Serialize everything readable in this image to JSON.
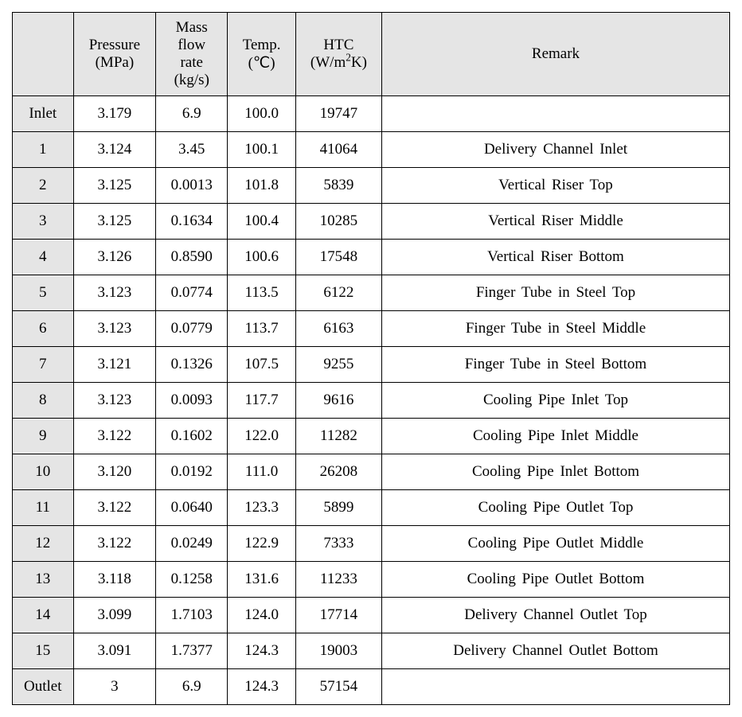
{
  "table": {
    "background_header": "#e5e5e5",
    "background_body": "#ffffff",
    "border_color": "#000000",
    "font_family": "Times New Roman",
    "header_fontsize": 19,
    "cell_fontsize": 19,
    "columns": [
      {
        "key": "rowlabel",
        "label": "",
        "width": "8.5%"
      },
      {
        "key": "pressure",
        "label": "Pressure (MPa)",
        "width": "11.5%"
      },
      {
        "key": "massflow",
        "label": "Mass flow rate (kg/s)",
        "width": "10%"
      },
      {
        "key": "temp",
        "label": "Temp. (℃)",
        "width": "9.5%"
      },
      {
        "key": "htc",
        "label_html": "HTC (W/m²K)",
        "width": "12%"
      },
      {
        "key": "remark",
        "label": "Remark",
        "width": "48.5%"
      }
    ],
    "header_pressure": "Pressure",
    "header_pressure_unit": "(MPa)",
    "header_massflow_l1": "Mass",
    "header_massflow_l2": "flow",
    "header_massflow_l3": "rate",
    "header_massflow_unit": "(kg/s)",
    "header_temp": "Temp.",
    "header_temp_unit": "(℃)",
    "header_htc": "HTC",
    "header_htc_unit_pre": "(W/m",
    "header_htc_unit_sup": "2",
    "header_htc_unit_post": "K)",
    "header_remark": "Remark",
    "rows": [
      {
        "label": "Inlet",
        "pressure": "3.179",
        "massflow": "6.9",
        "temp": "100.0",
        "htc": "19747",
        "remark": ""
      },
      {
        "label": "1",
        "pressure": "3.124",
        "massflow": "3.45",
        "temp": "100.1",
        "htc": "41064",
        "remark": "Delivery Channel Inlet"
      },
      {
        "label": "2",
        "pressure": "3.125",
        "massflow": "0.0013",
        "temp": "101.8",
        "htc": "5839",
        "remark": "Vertical Riser Top"
      },
      {
        "label": "3",
        "pressure": "3.125",
        "massflow": "0.1634",
        "temp": "100.4",
        "htc": "10285",
        "remark": "Vertical Riser Middle"
      },
      {
        "label": "4",
        "pressure": "3.126",
        "massflow": "0.8590",
        "temp": "100.6",
        "htc": "17548",
        "remark": "Vertical Riser Bottom"
      },
      {
        "label": "5",
        "pressure": "3.123",
        "massflow": "0.0774",
        "temp": "113.5",
        "htc": "6122",
        "remark": "Finger Tube in Steel Top"
      },
      {
        "label": "6",
        "pressure": "3.123",
        "massflow": "0.0779",
        "temp": "113.7",
        "htc": "6163",
        "remark": "Finger Tube in Steel Middle"
      },
      {
        "label": "7",
        "pressure": "3.121",
        "massflow": "0.1326",
        "temp": "107.5",
        "htc": "9255",
        "remark": "Finger Tube in Steel Bottom"
      },
      {
        "label": "8",
        "pressure": "3.123",
        "massflow": "0.0093",
        "temp": "117.7",
        "htc": "9616",
        "remark": "Cooling Pipe Inlet Top"
      },
      {
        "label": "9",
        "pressure": "3.122",
        "massflow": "0.1602",
        "temp": "122.0",
        "htc": "11282",
        "remark": "Cooling Pipe Inlet Middle"
      },
      {
        "label": "10",
        "pressure": "3.120",
        "massflow": "0.0192",
        "temp": "111.0",
        "htc": "26208",
        "remark": "Cooling Pipe Inlet Bottom"
      },
      {
        "label": "11",
        "pressure": "3.122",
        "massflow": "0.0640",
        "temp": "123.3",
        "htc": "5899",
        "remark": "Cooling Pipe Outlet Top"
      },
      {
        "label": "12",
        "pressure": "3.122",
        "massflow": "0.0249",
        "temp": "122.9",
        "htc": "7333",
        "remark": "Cooling Pipe Outlet Middle"
      },
      {
        "label": "13",
        "pressure": "3.118",
        "massflow": "0.1258",
        "temp": "131.6",
        "htc": "11233",
        "remark": "Cooling Pipe Outlet Bottom"
      },
      {
        "label": "14",
        "pressure": "3.099",
        "massflow": "1.7103",
        "temp": "124.0",
        "htc": "17714",
        "remark": "Delivery Channel Outlet Top"
      },
      {
        "label": "15",
        "pressure": "3.091",
        "massflow": "1.7377",
        "temp": "124.3",
        "htc": "19003",
        "remark": "Delivery Channel Outlet Bottom"
      },
      {
        "label": "Outlet",
        "pressure": "3",
        "massflow": "6.9",
        "temp": "124.3",
        "htc": "57154",
        "remark": ""
      }
    ]
  }
}
